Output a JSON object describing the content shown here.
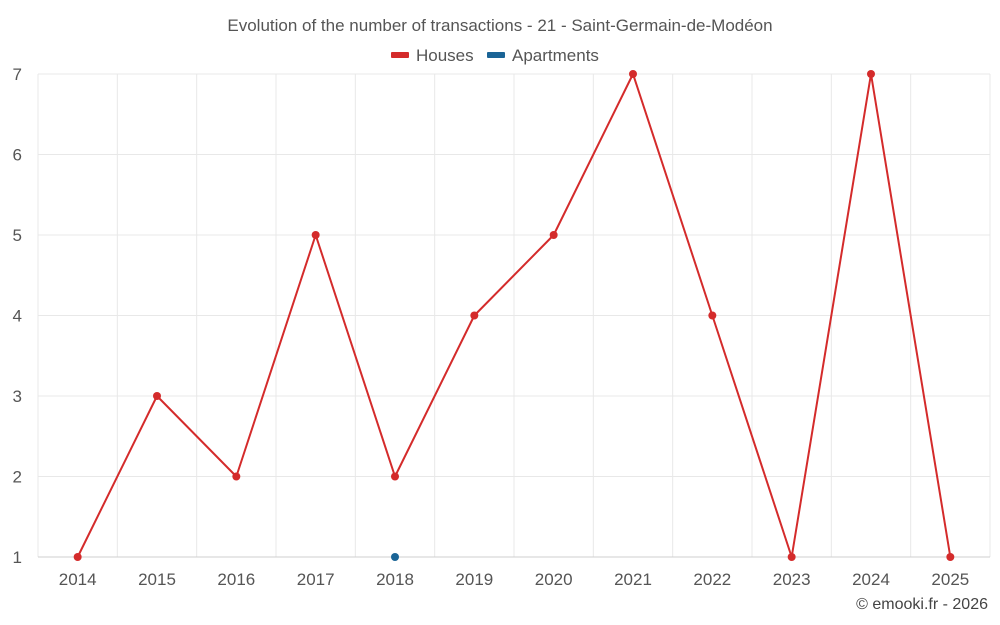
{
  "chart_data": {
    "type": "line",
    "title": "Evolution of the number of transactions - 21 - Saint-Germain-de-Modéon",
    "categories": [
      "2014",
      "2015",
      "2016",
      "2017",
      "2018",
      "2019",
      "2020",
      "2021",
      "2022",
      "2023",
      "2024",
      "2025"
    ],
    "series": [
      {
        "name": "Houses",
        "color": "#d42b2b",
        "values": [
          1,
          3,
          2,
          5,
          2,
          4,
          5,
          7,
          4,
          1,
          7,
          1
        ]
      },
      {
        "name": "Apartments",
        "color": "#1a6496",
        "values": [
          null,
          null,
          null,
          null,
          1,
          null,
          null,
          null,
          null,
          null,
          null,
          null
        ]
      }
    ],
    "ylim": [
      1,
      7
    ],
    "yticks": [
      1,
      2,
      3,
      4,
      5,
      6,
      7
    ],
    "xlabel": "",
    "ylabel": "",
    "grid": true,
    "legend_position": "top-center",
    "credit": "© emooki.fr - 2026"
  }
}
